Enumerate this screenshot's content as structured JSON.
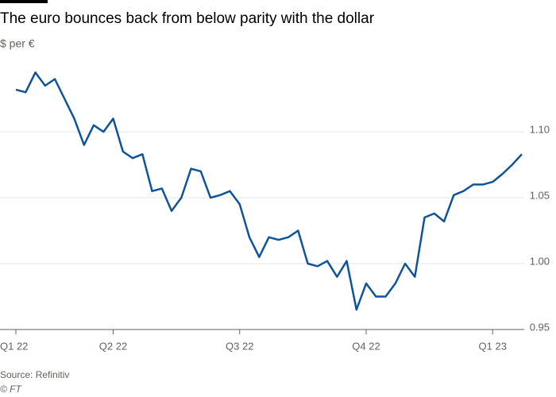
{
  "chart_data": {
    "type": "line",
    "title": "The euro bounces back from below parity with the dollar",
    "subtitle": "$ per €",
    "source": "Source: Refinitiv",
    "credit": "© FT",
    "categories": [
      "Q1 22",
      null,
      null,
      null,
      null,
      null,
      null,
      null,
      null,
      null,
      "Q2 22",
      null,
      null,
      null,
      null,
      null,
      null,
      null,
      null,
      null,
      null,
      null,
      null,
      "Q3 22",
      null,
      null,
      null,
      null,
      null,
      null,
      null,
      null,
      null,
      null,
      null,
      null,
      "Q4 22",
      null,
      null,
      null,
      null,
      null,
      null,
      null,
      null,
      null,
      null,
      null,
      null,
      "Q1 23",
      null,
      null,
      null
    ],
    "values": [
      1.132,
      1.13,
      1.145,
      1.135,
      1.14,
      1.125,
      1.11,
      1.09,
      1.105,
      1.1,
      1.11,
      1.085,
      1.08,
      1.083,
      1.055,
      1.057,
      1.04,
      1.05,
      1.072,
      1.07,
      1.05,
      1.052,
      1.055,
      1.045,
      1.02,
      1.005,
      1.02,
      1.018,
      1.02,
      1.025,
      1.0,
      0.998,
      1.002,
      0.99,
      1.002,
      0.965,
      0.985,
      0.975,
      0.975,
      0.985,
      1.0,
      0.99,
      1.035,
      1.038,
      1.032,
      1.052,
      1.055,
      1.06,
      1.06,
      1.062,
      1.068,
      1.075,
      1.083
    ],
    "color": "#0f5499",
    "ylim": [
      0.95,
      1.15
    ],
    "yticks": [
      {
        "value": 0.95,
        "label": "0.95"
      },
      {
        "value": 1.0,
        "label": "1.00"
      },
      {
        "value": 1.05,
        "label": "1.05"
      },
      {
        "value": 1.1,
        "label": "1.10"
      }
    ],
    "grid": true
  }
}
